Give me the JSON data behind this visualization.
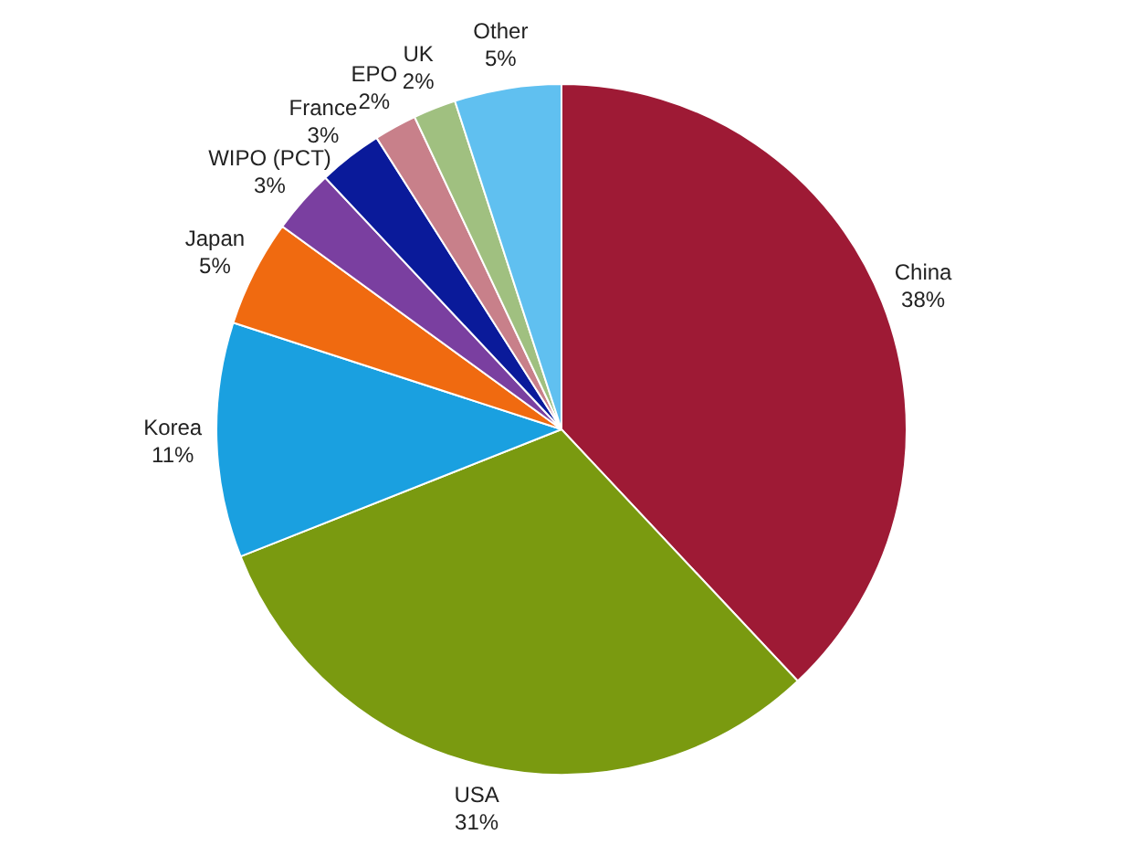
{
  "chart_data": {
    "type": "pie",
    "categories": [
      "China",
      "USA",
      "Korea",
      "Japan",
      "WIPO (PCT)",
      "France",
      "EPO",
      "UK",
      "Other"
    ],
    "values": [
      38,
      31,
      11,
      5,
      3,
      3,
      2,
      2,
      5
    ],
    "value_labels": [
      "38%",
      "31%",
      "11%",
      "5%",
      "3%",
      "3%",
      "2%",
      "2%",
      "5%"
    ],
    "colors": [
      "#9e1a35",
      "#7a9a10",
      "#1aa0e0",
      "#f06a10",
      "#7a3fa0",
      "#0a1a9a",
      "#c8808a",
      "#a0c080",
      "#60c0f0"
    ],
    "legend": false
  }
}
